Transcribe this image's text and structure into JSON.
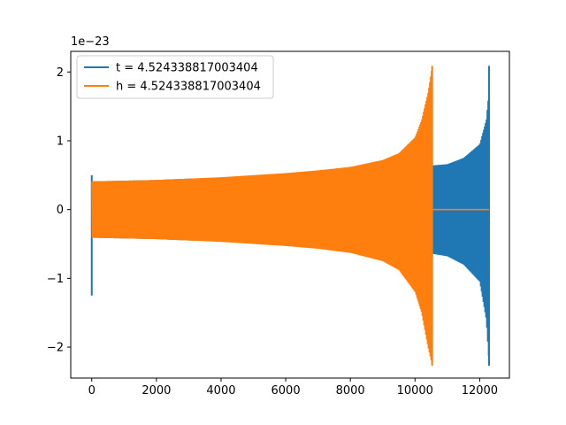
{
  "chart_data": {
    "type": "line",
    "title": "",
    "xlabel": "",
    "ylabel": "",
    "xlim": [
      -650,
      12920
    ],
    "ylim": [
      -2.45,
      2.3
    ],
    "y_offset_label": "1e−23",
    "x_ticks": [
      0,
      2000,
      4000,
      6000,
      8000,
      10000,
      12000
    ],
    "x_tick_labels": [
      "0",
      "2000",
      "4000",
      "6000",
      "8000",
      "10000",
      "12000"
    ],
    "y_ticks": [
      -2,
      -1,
      0,
      1,
      2
    ],
    "y_tick_labels": [
      "−2",
      "−1",
      "0",
      "1",
      "2"
    ],
    "grid": false,
    "legend_position": "top-left",
    "series": [
      {
        "name": "t = 4.524338817003404",
        "color": "#1f77b4",
        "style": "chirp-envelope",
        "envelope_x": [
          0,
          1000,
          2000,
          3000,
          4000,
          5000,
          6000,
          7000,
          8000,
          9000,
          10000,
          10500,
          11000,
          11500,
          12000,
          12200,
          12290
        ],
        "envelope_upper": [
          0.41,
          0.42,
          0.43,
          0.45,
          0.46,
          0.48,
          0.5,
          0.53,
          0.56,
          0.6,
          0.64,
          0.64,
          0.66,
          0.75,
          0.95,
          1.3,
          1.75
        ],
        "envelope_lower": [
          -0.41,
          -0.42,
          -0.43,
          -0.45,
          -0.46,
          -0.48,
          -0.5,
          -0.53,
          -0.56,
          -0.6,
          -0.64,
          -0.64,
          -0.68,
          -0.8,
          -1.05,
          -1.6,
          -2.27
        ],
        "spikes": [
          {
            "x": 0,
            "y_min": -1.25,
            "y_max": 0.5
          },
          {
            "x": 12290,
            "y_min": -2.27,
            "y_max": 2.09
          }
        ]
      },
      {
        "name": "h = 4.524338817003404",
        "color": "#ff7f0e",
        "style": "chirp-envelope",
        "envelope_x": [
          0,
          1000,
          2000,
          3000,
          4000,
          5000,
          6000,
          7000,
          8000,
          9000,
          9500,
          10000,
          10200,
          10400,
          10530
        ],
        "envelope_upper": [
          0.41,
          0.42,
          0.43,
          0.45,
          0.47,
          0.5,
          0.53,
          0.57,
          0.62,
          0.72,
          0.82,
          1.05,
          1.3,
          1.7,
          2.09
        ],
        "envelope_lower": [
          -0.41,
          -0.42,
          -0.43,
          -0.45,
          -0.47,
          -0.5,
          -0.53,
          -0.57,
          -0.63,
          -0.75,
          -0.88,
          -1.2,
          -1.5,
          -2.0,
          -2.27
        ],
        "spikes": [
          {
            "x": 10530,
            "y_min": -2.27,
            "y_max": 2.09
          }
        ],
        "flat_segment": {
          "x_start": 10530,
          "x_end": 12290,
          "y": 0
        }
      }
    ]
  }
}
